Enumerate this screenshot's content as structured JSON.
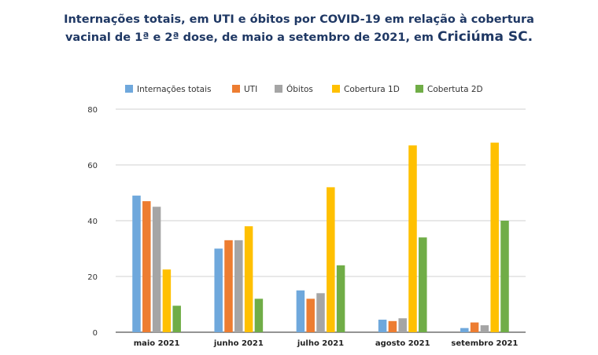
{
  "title": {
    "line1": "Internações totais, em UTI e óbitos por COVID-19 em relação à cobertura",
    "line2_prefix": "vacinal de 1ª e 2ª dose, de maio a setembro de 2021, em",
    "line2_place": "Criciúma SC."
  },
  "chart_data": {
    "type": "bar",
    "title": "Internações totais, em UTI e óbitos por COVID-19 em relação à cobertura vacinal de 1ª e 2ª dose, de maio a setembro de 2021, em Criciúma SC.",
    "categories": [
      "maio 2021",
      "junho 2021",
      "julho 2021",
      "agosto 2021",
      "setembro 2021"
    ],
    "series": [
      {
        "name": "Internações totais",
        "color": "#6fa8dc",
        "values": [
          49,
          30,
          15,
          4.5,
          1.5
        ]
      },
      {
        "name": "UTI",
        "color": "#ed7d31",
        "values": [
          47,
          33,
          12,
          4,
          3.5
        ]
      },
      {
        "name": "Óbitos",
        "color": "#a5a5a5",
        "values": [
          45,
          33,
          14,
          5,
          2.5
        ]
      },
      {
        "name": "Cobertura 1D",
        "color": "#ffc000",
        "values": [
          22.5,
          38,
          52,
          67,
          68
        ]
      },
      {
        "name": "Cobertuta 2D",
        "color": "#70ad47",
        "values": [
          9.5,
          12,
          24,
          34,
          40
        ]
      }
    ],
    "ylim": [
      0,
      80
    ],
    "yticks": [
      0,
      20,
      40,
      60,
      80
    ],
    "grid": true,
    "legend": "top"
  }
}
